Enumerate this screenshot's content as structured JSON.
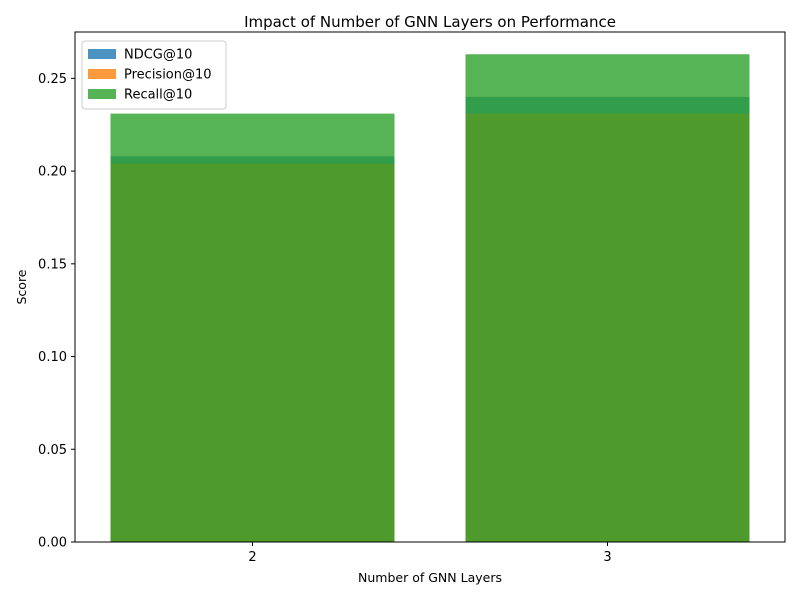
{
  "chart_data": {
    "type": "bar",
    "title": "Impact of Number of GNN Layers on Performance",
    "xlabel": "Number of GNN Layers",
    "ylabel": "Score",
    "categories": [
      "2",
      "3"
    ],
    "ylim": [
      0,
      0.275
    ],
    "yticks": [
      "0.00",
      "0.05",
      "0.10",
      "0.15",
      "0.20",
      "0.25"
    ],
    "ytick_values": [
      0,
      0.05,
      0.1,
      0.15,
      0.2,
      0.25
    ],
    "grid": false,
    "legend_position": "top-left",
    "series": [
      {
        "name": "NDCG@10",
        "values": [
          0.208,
          0.24
        ],
        "color": "#1f77b4"
      },
      {
        "name": "Precision@10",
        "values": [
          0.204,
          0.231
        ],
        "color": "#ff7f0e"
      },
      {
        "name": "Recall@10",
        "values": [
          0.231,
          0.263
        ],
        "color": "#2ca02c"
      }
    ],
    "bar_alpha": 0.8
  }
}
